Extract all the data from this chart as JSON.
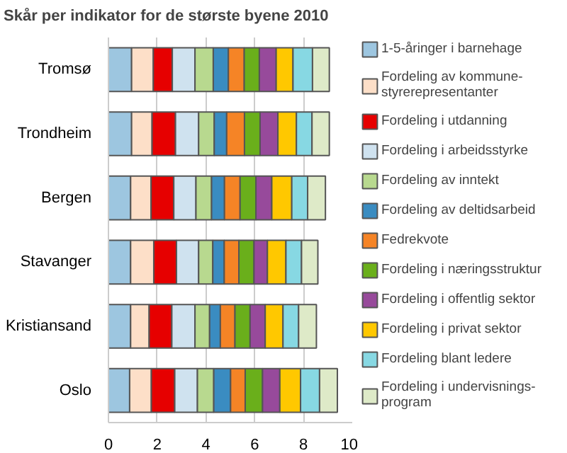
{
  "chart_data": {
    "type": "bar",
    "orientation": "horizontal",
    "stacked": true,
    "title": "Skår per indikator for de største byene 2010",
    "categories": [
      "Tromsø",
      "Trondheim",
      "Bergen",
      "Stavanger",
      "Kristiansand",
      "Oslo"
    ],
    "series": [
      {
        "name": "1-5-åringer i barnehage",
        "color": "#9dc6e0",
        "values": [
          0.95,
          0.95,
          0.91,
          0.91,
          0.91,
          0.87
        ]
      },
      {
        "name": "Fordeling av kommune-styrerepresentanter",
        "color": "#fddfc8",
        "values": [
          0.89,
          0.84,
          0.84,
          0.95,
          0.76,
          0.89
        ]
      },
      {
        "name": "Fordeling i utdanning",
        "color": "#e60000",
        "values": [
          0.78,
          0.96,
          0.93,
          0.93,
          0.93,
          0.96
        ]
      },
      {
        "name": "Fordeling i arbeidsstyrke",
        "color": "#cfe2ef",
        "values": [
          0.93,
          0.95,
          0.91,
          0.91,
          0.95,
          0.93
        ]
      },
      {
        "name": "Fordeling av inntekt",
        "color": "#b8d98f",
        "values": [
          0.75,
          0.64,
          0.64,
          0.58,
          0.6,
          0.67
        ]
      },
      {
        "name": "Fordeling av deltidsarbeid",
        "color": "#3a8cc1",
        "values": [
          0.62,
          0.51,
          0.53,
          0.47,
          0.44,
          0.69
        ]
      },
      {
        "name": "Fedrekvote",
        "color": "#f58426",
        "values": [
          0.65,
          0.73,
          0.64,
          0.6,
          0.6,
          0.6
        ]
      },
      {
        "name": "Fordeling i næringsstruktur",
        "color": "#6aaf1b",
        "values": [
          0.62,
          0.64,
          0.65,
          0.62,
          0.62,
          0.71
        ]
      },
      {
        "name": "Fordeling i offentlig sektor",
        "color": "#974a9b",
        "values": [
          0.69,
          0.73,
          0.65,
          0.55,
          0.62,
          0.71
        ]
      },
      {
        "name": "Fordeling i privat sektor",
        "color": "#ffc800",
        "values": [
          0.69,
          0.76,
          0.82,
          0.76,
          0.73,
          0.85
        ]
      },
      {
        "name": "Fordeling blant ledere",
        "color": "#87d8e3",
        "values": [
          0.8,
          0.64,
          0.65,
          0.64,
          0.64,
          0.78
        ]
      },
      {
        "name": "Fordeling i undervisnings-program",
        "color": "#deeac8",
        "values": [
          0.69,
          0.71,
          0.73,
          0.67,
          0.73,
          0.73
        ]
      }
    ],
    "xlim": [
      0,
      10
    ],
    "xticks": [
      0,
      2,
      4,
      6,
      8,
      10
    ],
    "grid": "x",
    "legend": "right"
  }
}
